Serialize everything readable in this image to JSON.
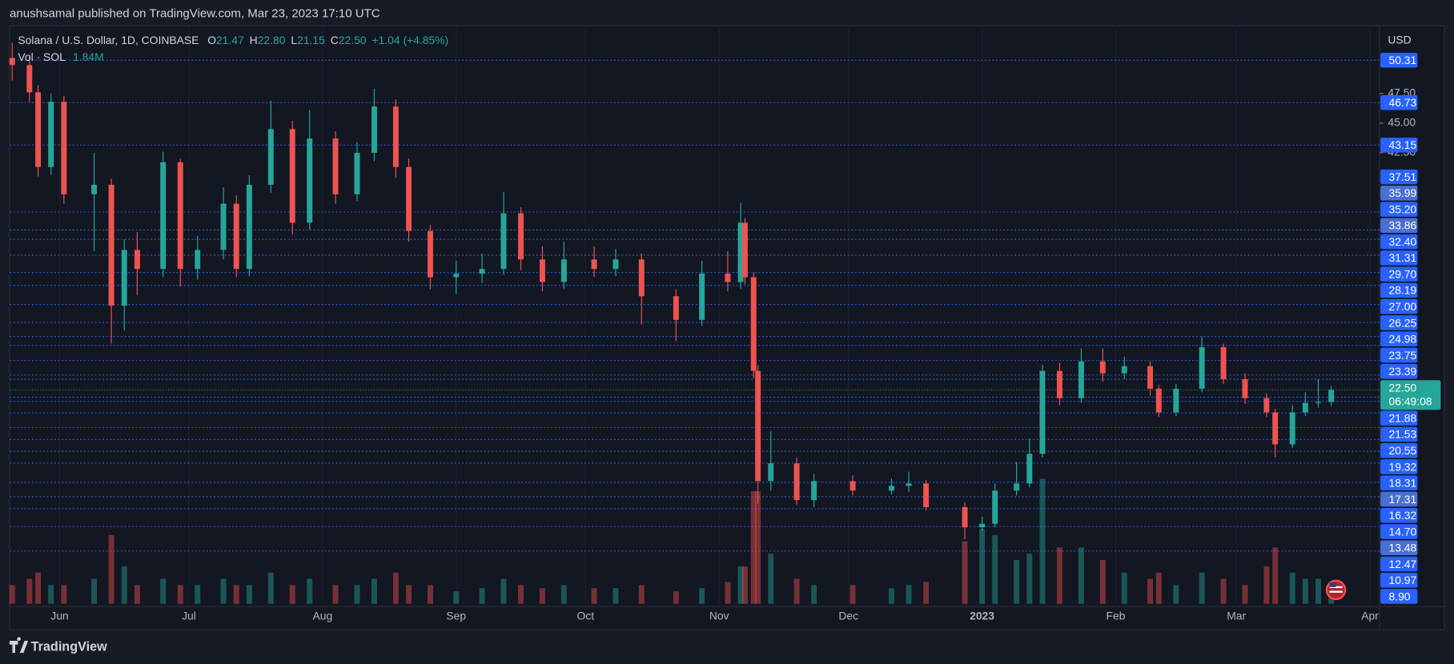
{
  "header": {
    "publisher": "anushsamal published on TradingView.com, Mar 23, 2023 17:10 UTC"
  },
  "chart_data": {
    "type": "candlestick",
    "symbol": "Solana / U.S. Dollar, 1D, COINBASE",
    "ohlc_legend": [
      {
        "key": "O",
        "value": 21.47,
        "label": "21.47"
      },
      {
        "key": "H",
        "value": 22.8,
        "label": "22.80"
      },
      {
        "key": "L",
        "value": 21.15,
        "label": "21.15"
      },
      {
        "key": "C",
        "value": 22.5,
        "label": "22.50"
      }
    ],
    "change": "+1.04 (+4.85%)",
    "volume_legend": {
      "name": "Vol · SOL",
      "value": 1.84,
      "label": "1.84M"
    },
    "currency": "USD",
    "x": [
      -11,
      -7,
      -5,
      -2,
      1,
      8,
      12,
      15,
      18,
      24,
      28,
      32,
      38,
      41,
      44,
      49,
      54,
      58,
      64,
      69,
      73,
      78,
      81,
      86,
      92,
      98,
      103,
      107,
      112,
      117,
      124,
      129,
      135,
      143,
      149,
      155,
      158,
      159,
      161,
      162,
      165,
      171,
      175,
      184,
      193,
      197,
      201,
      210,
      214,
      217,
      222,
      225,
      228,
      232,
      237,
      242,
      247,
      253,
      255,
      259,
      265,
      270,
      275,
      280,
      282,
      286,
      289,
      292,
      295
    ],
    "open": [
      50.5,
      49.9,
      47.6,
      41.3,
      46.8,
      39.0,
      39.8,
      29.6,
      34.3,
      32.7,
      41.7,
      32.7,
      34.3,
      38.2,
      32.7,
      39.8,
      44.5,
      36.6,
      43.7,
      39.0,
      42.5,
      46.4,
      41.3,
      35.9,
      32.0,
      32.3,
      32.7,
      37.4,
      33.5,
      31.6,
      33.5,
      32.7,
      33.5,
      30.4,
      28.4,
      32.3,
      31.6,
      36.6,
      32.0,
      24.1,
      14.8,
      16.3,
      13.2,
      14.8,
      14.0,
      14.4,
      14.6,
      12.6,
      10.9,
      11.2,
      14.0,
      14.6,
      17.1,
      24.1,
      21.8,
      24.9,
      23.9,
      24.5,
      22.6,
      20.6,
      22.6,
      26.1,
      23.4,
      21.8,
      20.6,
      17.9,
      20.6,
      21.4,
      21.47
    ],
    "high": [
      51.8,
      50.6,
      48.2,
      47.5,
      47.3,
      42.5,
      40.3,
      35.2,
      35.8,
      42.6,
      42.0,
      35.5,
      39.6,
      38.9,
      40.6,
      46.9,
      45.2,
      46.1,
      44.3,
      43.4,
      47.9,
      47.0,
      42.0,
      36.4,
      33.4,
      34.0,
      39.2,
      37.9,
      34.6,
      35.0,
      34.6,
      34.4,
      34.0,
      31.0,
      33.4,
      34.2,
      38.3,
      37.0,
      32.4,
      24.6,
      19.0,
      16.8,
      15.4,
      15.3,
      15.0,
      15.6,
      14.9,
      13.0,
      11.8,
      14.6,
      16.4,
      18.4,
      24.6,
      24.8,
      26.0,
      26.0,
      25.3,
      24.9,
      22.9,
      23.0,
      27.0,
      26.4,
      23.9,
      22.2,
      20.9,
      21.2,
      22.3,
      23.4,
      22.8
    ],
    "low": [
      48.6,
      46.8,
      40.5,
      40.6,
      38.2,
      34.2,
      26.4,
      27.5,
      30.5,
      32.0,
      31.2,
      31.8,
      33.5,
      32.0,
      32.1,
      39.1,
      35.6,
      36.0,
      38.2,
      38.4,
      41.8,
      40.4,
      35.0,
      31.0,
      30.6,
      31.5,
      32.2,
      32.6,
      30.8,
      31.0,
      32.0,
      32.1,
      28.0,
      26.6,
      27.9,
      30.8,
      31.0,
      31.4,
      23.5,
      12.9,
      14.0,
      12.8,
      12.6,
      13.6,
      13.7,
      13.9,
      12.3,
      9.9,
      10.6,
      10.9,
      13.6,
      14.3,
      16.8,
      21.2,
      21.4,
      23.2,
      23.4,
      22.0,
      20.2,
      20.3,
      22.3,
      23.0,
      21.3,
      20.2,
      16.8,
      17.6,
      20.3,
      21.0,
      21.15
    ],
    "close": [
      49.9,
      47.6,
      41.3,
      46.8,
      39.0,
      39.8,
      29.6,
      34.3,
      32.7,
      41.7,
      32.7,
      34.3,
      38.2,
      32.7,
      39.8,
      44.5,
      36.6,
      43.7,
      39.0,
      42.5,
      46.4,
      41.3,
      35.9,
      32.0,
      32.3,
      32.7,
      37.4,
      33.5,
      31.6,
      33.5,
      32.7,
      33.5,
      30.4,
      28.4,
      32.3,
      31.6,
      36.6,
      32.0,
      24.1,
      14.8,
      16.3,
      13.2,
      14.8,
      14.0,
      14.4,
      14.6,
      12.6,
      10.9,
      11.2,
      14.0,
      14.6,
      17.1,
      24.1,
      21.8,
      24.9,
      23.9,
      24.5,
      22.6,
      20.6,
      22.6,
      26.1,
      23.4,
      21.8,
      20.6,
      17.9,
      20.6,
      21.4,
      21.47,
      22.5
    ],
    "volume": [
      3,
      4,
      5,
      3,
      3,
      4,
      11,
      6,
      3,
      4,
      3,
      3,
      4,
      3,
      3,
      5,
      3,
      4,
      3,
      3,
      4,
      5,
      3,
      3,
      2,
      2.5,
      4,
      3,
      2.5,
      3,
      2.5,
      2.5,
      3,
      2,
      2.5,
      3.5,
      6,
      6,
      18,
      18,
      8,
      4,
      3,
      3,
      2.5,
      3,
      3.5,
      10,
      12,
      11,
      7,
      8,
      20,
      9,
      9,
      7,
      5,
      4,
      5,
      3,
      5,
      4,
      3,
      6,
      9,
      5,
      4,
      4,
      1.84
    ],
    "up_color": "#26a69a",
    "down_color": "#ef5350",
    "xlim": [
      -11.6,
      306.2
    ],
    "xticks": [
      {
        "value": 0,
        "label": "Jun"
      },
      {
        "value": 30,
        "label": "Jul"
      },
      {
        "value": 61,
        "label": "Aug"
      },
      {
        "value": 92,
        "label": "Sep"
      },
      {
        "value": 122,
        "label": "Oct"
      },
      {
        "value": 153,
        "label": "Nov"
      },
      {
        "value": 183,
        "label": "Dec"
      },
      {
        "value": 214,
        "label": "2023",
        "bold": true
      },
      {
        "value": 245,
        "label": "Feb"
      },
      {
        "value": 273,
        "label": "Mar"
      },
      {
        "value": 304,
        "label": "Apr"
      }
    ],
    "ylim": [
      4.45,
      53.2
    ],
    "yticks": [
      {
        "value": 47.5,
        "label": "47.50"
      },
      {
        "value": 45,
        "label": "45.00"
      },
      {
        "value": 42.5,
        "label": "42.50"
      }
    ],
    "levels": [
      {
        "value": 50.31,
        "color": "#2962ff"
      },
      {
        "value": 46.73,
        "color": "#2962ff"
      },
      {
        "value": 43.15,
        "color": "#2962ff"
      },
      {
        "value": 37.51,
        "color": "#2962ff"
      },
      {
        "value": 35.99,
        "color": "#4a6fd4"
      },
      {
        "value": 35.2,
        "label": "35.20",
        "color": "#2962ff"
      },
      {
        "value": 33.86,
        "color": "#4a6fd4"
      },
      {
        "value": 32.4,
        "label": "32.40",
        "color": "#2962ff"
      },
      {
        "value": 31.31,
        "color": "#2962ff"
      },
      {
        "value": 29.7,
        "label": "29.70",
        "color": "#2962ff"
      },
      {
        "value": 28.19,
        "color": "#2962ff"
      },
      {
        "value": 27,
        "label": "27.00",
        "color": "#2962ff"
      },
      {
        "value": 26.25,
        "color": "#2962ff"
      },
      {
        "value": 24.98,
        "color": "#2962ff"
      },
      {
        "value": 23.75,
        "color": "#2962ff"
      },
      {
        "value": 23.39,
        "color": "#2962ff"
      },
      {
        "value": 22.5,
        "label": "22.50",
        "countdown": "06:49:08",
        "color": "#26a69a"
      },
      {
        "value": 21.88,
        "color": "#2962ff"
      },
      {
        "value": 21.53,
        "color": "#2962ff"
      },
      {
        "value": 20.55,
        "color": "#2962ff"
      },
      {
        "value": 19.32,
        "color": "#2962ff"
      },
      {
        "value": 18.31,
        "color": "#2962ff"
      },
      {
        "value": 17.31,
        "color": "#4a6fd4"
      },
      {
        "value": 16.32,
        "color": "#2962ff"
      },
      {
        "value": 14.7,
        "label": "14.70",
        "color": "#2962ff"
      },
      {
        "value": 13.48,
        "color": "#4a6fd4"
      },
      {
        "value": 12.47,
        "color": "#2962ff"
      },
      {
        "value": 10.97,
        "color": "#2962ff"
      },
      {
        "value": 8.9,
        "label": "8.90",
        "color": "#2962ff"
      }
    ]
  },
  "footer": {
    "brand": "TradingView"
  }
}
